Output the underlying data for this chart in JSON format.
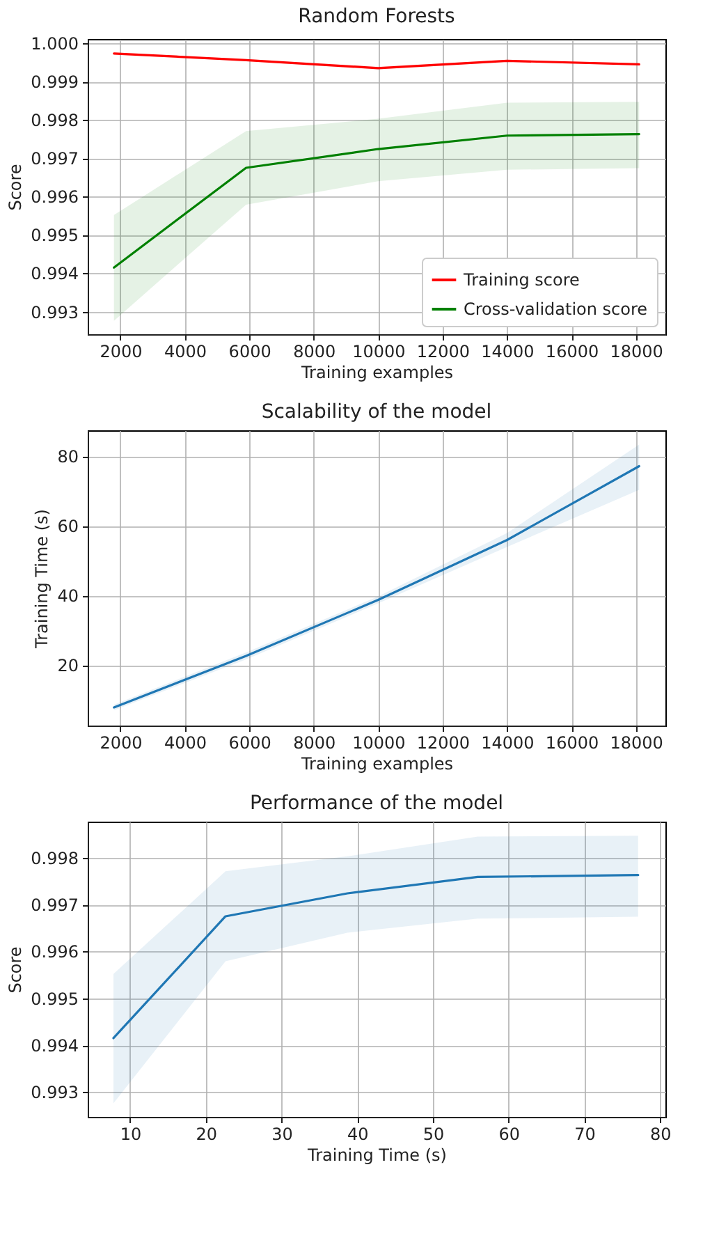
{
  "chart_data": [
    {
      "type": "line",
      "title": "Random Forests",
      "xlabel": "Training examples",
      "ylabel": "Score",
      "x": [
        1800,
        5900,
        10000,
        14000,
        18100
      ],
      "series": [
        {
          "name": "Training score",
          "color": "#ff0000",
          "values": [
            0.99973,
            0.99956,
            0.99935,
            0.99954,
            0.99945
          ],
          "lower": [
            0.9997,
            0.99953,
            0.99931,
            0.99951,
            0.99943
          ],
          "upper": [
            0.99976,
            0.99959,
            0.99939,
            0.99957,
            0.99947
          ]
        },
        {
          "name": "Cross-validation score",
          "color": "#008000",
          "values": [
            0.99415,
            0.99675,
            0.99724,
            0.99759,
            0.99763
          ],
          "lower": [
            0.99276,
            0.99579,
            0.9964,
            0.9967,
            0.99674
          ],
          "upper": [
            0.99552,
            0.99771,
            0.99803,
            0.99845,
            0.99847
          ]
        }
      ],
      "xlim": [
        985,
        18915
      ],
      "ylim": [
        0.99241,
        1.00011
      ],
      "xticks": [
        2000,
        4000,
        6000,
        8000,
        10000,
        12000,
        14000,
        16000,
        18000
      ],
      "yticks": [
        0.993,
        0.994,
        0.995,
        0.996,
        0.997,
        0.998,
        0.999,
        {
          "value": 1.0,
          "label": "1.000"
        }
      ],
      "grid": true,
      "legend": "bottom right"
    },
    {
      "type": "line",
      "title": "Scalability of the model",
      "xlabel": "Training examples",
      "ylabel": "Training Time (s)",
      "x": [
        1800,
        5900,
        10000,
        14000,
        18100
      ],
      "series": [
        {
          "color": "#1f77b4",
          "values": [
            7.8,
            22.6,
            38.7,
            55.9,
            77.1
          ],
          "lower": [
            7.0,
            21.6,
            37.7,
            53.9,
            70.3
          ],
          "upper": [
            8.6,
            23.6,
            39.7,
            57.9,
            83.3
          ]
        }
      ],
      "xlim": [
        985,
        18915
      ],
      "ylim": [
        2.6,
        87.4
      ],
      "xticks": [
        2000,
        4000,
        6000,
        8000,
        10000,
        12000,
        14000,
        16000,
        18000
      ],
      "yticks": [
        20,
        40,
        60,
        80
      ],
      "grid": true
    },
    {
      "type": "line",
      "title": "Performance of the model",
      "xlabel": "Training Time (s)",
      "ylabel": "Score",
      "x": [
        7.8,
        22.6,
        38.7,
        55.9,
        77.1
      ],
      "series": [
        {
          "color": "#1f77b4",
          "values": [
            0.99415,
            0.99675,
            0.99724,
            0.99759,
            0.99763
          ],
          "lower": [
            0.99276,
            0.99579,
            0.9964,
            0.9967,
            0.99674
          ],
          "upper": [
            0.99552,
            0.99771,
            0.99803,
            0.99845,
            0.99847
          ]
        }
      ],
      "xlim": [
        4.4,
        80.7
      ],
      "ylim": [
        0.99247,
        0.99877
      ],
      "xticks": [
        10,
        20,
        30,
        40,
        50,
        60,
        70,
        80
      ],
      "yticks": [
        0.993,
        0.994,
        0.995,
        0.996,
        0.997,
        0.998
      ],
      "grid": true
    }
  ]
}
